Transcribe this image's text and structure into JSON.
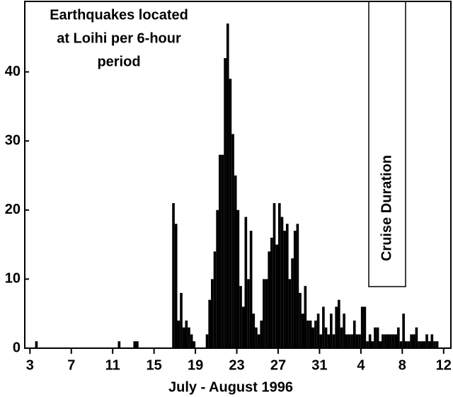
{
  "chart_data": {
    "type": "bar",
    "title": [
      "Earthquakes located",
      "at Loihi per 6-hour",
      "period"
    ],
    "xlabel": "July - August 1996",
    "annotation": "Cruise Duration",
    "color": "#000000",
    "xlim": [
      2.5,
      43.7
    ],
    "ylim": [
      0,
      50
    ],
    "yticks": [
      0,
      10,
      20,
      30,
      40
    ],
    "xticks": [
      3,
      7,
      11,
      15,
      19,
      23,
      27,
      31,
      {
        "value": 35,
        "label": "4"
      },
      {
        "value": 39,
        "label": "8"
      },
      {
        "value": 43,
        "label": "12"
      }
    ],
    "x": [
      3.5,
      11.5,
      13,
      13.25,
      16.75,
      17,
      17.25,
      17.5,
      17.75,
      18,
      18.25,
      18.5,
      18.75,
      20,
      20.25,
      20.5,
      20.75,
      21,
      21.25,
      21.5,
      21.75,
      22,
      22.25,
      22.5,
      22.75,
      23,
      23.25,
      23.5,
      23.75,
      24,
      24.25,
      24.5,
      24.75,
      25,
      25.25,
      25.5,
      25.75,
      26,
      26.25,
      26.5,
      26.75,
      27,
      27.25,
      27.5,
      27.75,
      28,
      28.25,
      28.5,
      28.75,
      29,
      29.25,
      29.5,
      29.75,
      30,
      30.25,
      30.5,
      30.75,
      31,
      31.25,
      31.5,
      31.75,
      32,
      32.25,
      32.5,
      32.75,
      33,
      33.25,
      33.5,
      33.75,
      34,
      34.25,
      34.5,
      34.75,
      35,
      35.25,
      35.5,
      35.75,
      36,
      36.25,
      36.5,
      36.75,
      37,
      37.25,
      37.5,
      37.75,
      38,
      38.25,
      38.5,
      38.75,
      39,
      39.25,
      39.5,
      39.75,
      40,
      40.25,
      40.5,
      40.75,
      41,
      41.25,
      41.5,
      41.75,
      42,
      42.25
    ],
    "values": [
      1,
      1,
      1,
      1,
      21,
      18,
      4,
      8,
      3,
      4,
      3,
      2,
      1,
      2,
      7,
      10,
      14,
      20,
      28,
      28,
      42,
      47,
      39,
      31,
      25,
      20,
      9,
      6,
      19,
      10,
      17,
      5,
      3,
      2,
      4,
      10,
      10,
      14,
      16,
      21,
      15,
      21,
      19,
      17,
      18,
      10,
      13,
      17,
      18,
      8,
      5,
      9,
      4,
      4,
      3,
      4,
      5,
      2,
      6,
      3,
      2,
      5,
      2,
      6,
      7,
      3,
      5,
      2,
      2,
      2,
      4,
      2,
      2,
      6,
      6,
      1,
      2,
      1,
      3,
      3,
      1,
      2,
      2,
      2,
      2,
      2,
      2,
      3,
      1,
      5,
      1,
      1,
      2,
      2,
      3,
      1,
      1,
      1,
      2,
      1,
      2,
      1,
      1
    ]
  }
}
